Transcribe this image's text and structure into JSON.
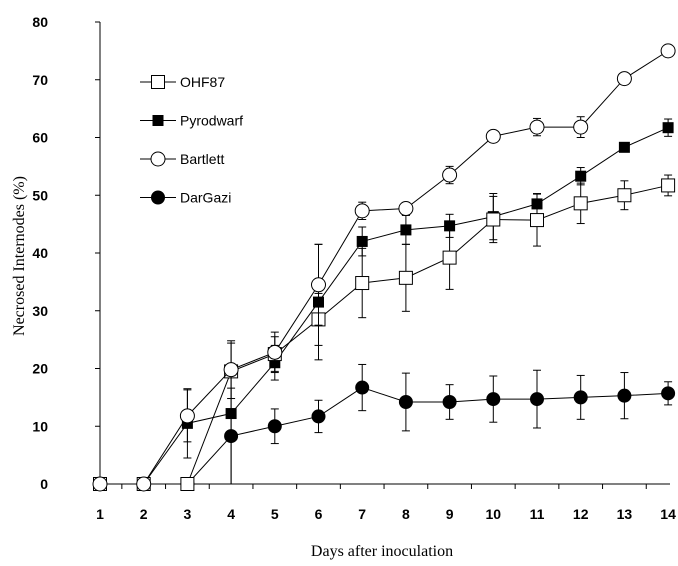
{
  "chart_data": {
    "type": "line",
    "title": "",
    "xlabel": "Days after inoculation",
    "ylabel": "Necrosed Internodes (%)",
    "categories": [
      "1",
      "2",
      "3",
      "4",
      "5",
      "6",
      "7",
      "8",
      "9",
      "10",
      "11",
      "12",
      "13",
      "14"
    ],
    "ylim": [
      0,
      80
    ],
    "yticks": [
      "0",
      "10",
      "20",
      "30",
      "40",
      "50",
      "60",
      "70",
      "80"
    ],
    "grid": false,
    "legend_position": "top-left",
    "series": [
      {
        "name": "OHF87",
        "marker": "square-open",
        "values": [
          0,
          0,
          0,
          19.5,
          22.5,
          28.5,
          34.8,
          35.7,
          39.2,
          45.8,
          45.7,
          48.6,
          50.0,
          51.7
        ],
        "errors": [
          0,
          0,
          0,
          0,
          3.0,
          4.5,
          6.0,
          5.8,
          5.5,
          4.0,
          4.5,
          3.5,
          2.5,
          1.8
        ]
      },
      {
        "name": "Pyrodwarf",
        "marker": "square-filled",
        "values": [
          0,
          0,
          10.5,
          12.2,
          21.0,
          31.5,
          42.0,
          44.0,
          44.7,
          46.3,
          48.5,
          53.3,
          58.3,
          61.7
        ],
        "errors": [
          0,
          0,
          6.0,
          12.2,
          3.0,
          10.0,
          2.5,
          2.5,
          2.0,
          4.0,
          1.8,
          1.5,
          0.5,
          1.5
        ]
      },
      {
        "name": "Bartlett",
        "marker": "circle-open",
        "values": [
          0,
          0,
          11.8,
          19.8,
          22.8,
          34.5,
          47.3,
          47.7,
          53.5,
          60.2,
          61.8,
          61.8,
          70.2,
          75.0
        ],
        "errors": [
          0,
          0,
          4.5,
          5.0,
          3.5,
          7.0,
          1.5,
          1.0,
          1.5,
          0.5,
          1.5,
          1.8,
          0.5,
          0.5
        ]
      },
      {
        "name": "DarGazi",
        "marker": "circle-filled",
        "values": [
          0,
          0,
          0,
          8.3,
          10.0,
          11.7,
          16.7,
          14.2,
          14.2,
          14.7,
          14.7,
          15.0,
          15.3,
          15.7
        ],
        "errors": [
          0,
          0,
          0,
          8.3,
          3.0,
          2.8,
          4.0,
          5.0,
          3.0,
          4.0,
          5.0,
          3.8,
          4.0,
          2.0
        ]
      }
    ]
  }
}
